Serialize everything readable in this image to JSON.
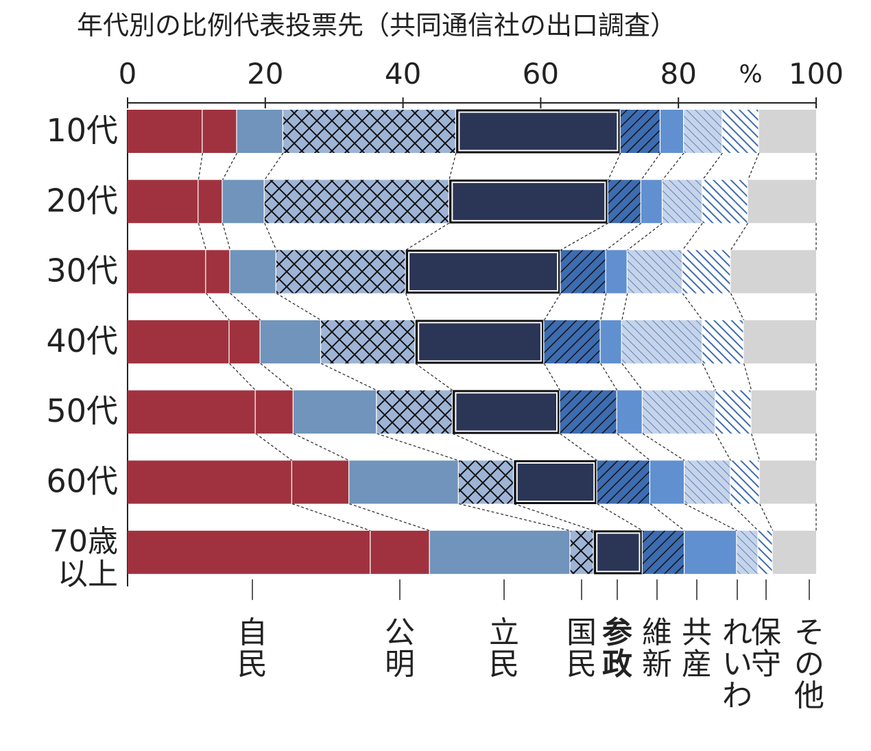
{
  "chart_data": {
    "type": "bar",
    "orientation": "horizontal",
    "stacked": true,
    "title": "年代別の比例代表投票先（共同通信社の出口調査）",
    "unit": "%",
    "xlim": [
      0,
      100
    ],
    "x_ticks": [
      "0",
      "20",
      "40",
      "60",
      "80",
      "100"
    ],
    "categories": [
      "10代",
      "20代",
      "30代",
      "40代",
      "50代",
      "60代",
      "70歳以上"
    ],
    "series": [
      {
        "name": "自民",
        "color": "#a0323f",
        "values": [
          10.9,
          10.3,
          11.4,
          14.8,
          18.6,
          23.9,
          35.3
        ]
      },
      {
        "name": "公明",
        "color": "#a0323f",
        "values": [
          5.0,
          3.5,
          3.5,
          4.5,
          5.5,
          8.3,
          8.6
        ]
      },
      {
        "name": "立民",
        "color": "#7094bb",
        "values": [
          6.7,
          6.1,
          6.7,
          8.8,
          12.1,
          15.9,
          20.4
        ]
      },
      {
        "name": "国民",
        "color": "#9db4d6",
        "pattern": "crosshatch",
        "values": [
          25.1,
          26.8,
          18.8,
          13.7,
          11.0,
          8.0,
          3.4
        ]
      },
      {
        "name": "参政",
        "color": "#2b3556",
        "emphasis": true,
        "values": [
          23.9,
          23.1,
          22.5,
          18.7,
          15.6,
          12.1,
          7.1
        ]
      },
      {
        "name": "維新",
        "color": "#3d6cb0",
        "pattern": "diagonal-dark",
        "values": [
          5.8,
          4.8,
          6.6,
          8.2,
          8.3,
          7.7,
          6.1
        ]
      },
      {
        "name": "共産",
        "color": "#6190d0",
        "values": [
          3.4,
          3.1,
          3.1,
          3.1,
          3.7,
          5.0,
          7.6
        ]
      },
      {
        "name": "れいわ",
        "color": "#b8c8e0",
        "pattern": "diagonal-light",
        "values": [
          5.6,
          5.8,
          8.0,
          11.7,
          10.6,
          6.7,
          3.1
        ]
      },
      {
        "name": "保守",
        "color": "#3d6cb0",
        "pattern": "diagonal-blue",
        "values": [
          5.3,
          6.6,
          7.0,
          6.0,
          5.2,
          4.2,
          2.1
        ]
      },
      {
        "name": "その他",
        "color": "#d4d4d4",
        "values": [
          8.3,
          9.9,
          12.4,
          10.5,
          9.4,
          8.2,
          6.3
        ]
      }
    ],
    "grid": false,
    "legend": "bottom"
  }
}
